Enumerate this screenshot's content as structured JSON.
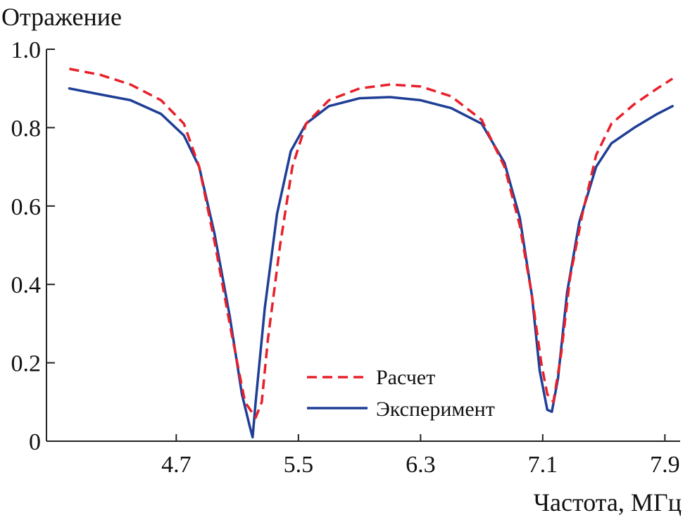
{
  "chart_data": {
    "type": "line",
    "ylabel": "Отражение",
    "xlabel": "Частота, МГц",
    "xlim": [
      3.85,
      8.0
    ],
    "ylim": [
      0,
      1.0
    ],
    "x_ticks": [
      4.7,
      5.5,
      6.3,
      7.1,
      7.9
    ],
    "x_tick_labels": [
      "4.7",
      "5.5",
      "6.3",
      "7.1",
      "7.9"
    ],
    "y_ticks": [
      0,
      0.2,
      0.4,
      0.6,
      0.8,
      1.0
    ],
    "y_tick_labels": [
      "0",
      "0.2",
      "0.4",
      "0.6",
      "0.8",
      "1.0"
    ],
    "grid": false,
    "legend_position": "bottom-center",
    "series": [
      {
        "name": "Расчет",
        "color": "#e8202a",
        "style": "dashed",
        "x": [
          4.0,
          4.2,
          4.4,
          4.6,
          4.75,
          4.85,
          4.95,
          5.05,
          5.15,
          5.22,
          5.26,
          5.3,
          5.38,
          5.46,
          5.55,
          5.7,
          5.9,
          6.1,
          6.3,
          6.5,
          6.7,
          6.85,
          6.95,
          7.03,
          7.09,
          7.13,
          7.17,
          7.22,
          7.28,
          7.36,
          7.45,
          7.55,
          7.7,
          7.85,
          7.95
        ],
        "y": [
          0.95,
          0.935,
          0.91,
          0.87,
          0.81,
          0.7,
          0.51,
          0.3,
          0.1,
          0.06,
          0.1,
          0.26,
          0.5,
          0.7,
          0.81,
          0.87,
          0.9,
          0.91,
          0.905,
          0.88,
          0.82,
          0.7,
          0.55,
          0.37,
          0.2,
          0.12,
          0.1,
          0.22,
          0.42,
          0.58,
          0.73,
          0.81,
          0.86,
          0.9,
          0.925
        ]
      },
      {
        "name": "Эксперимент",
        "color": "#1f3e96",
        "style": "solid",
        "x": [
          4.0,
          4.2,
          4.4,
          4.6,
          4.75,
          4.85,
          4.95,
          5.05,
          5.13,
          5.18,
          5.2,
          5.22,
          5.28,
          5.36,
          5.45,
          5.55,
          5.7,
          5.9,
          6.1,
          6.3,
          6.5,
          6.7,
          6.85,
          6.95,
          7.03,
          7.08,
          7.13,
          7.16,
          7.2,
          7.26,
          7.34,
          7.45,
          7.55,
          7.7,
          7.85,
          7.95
        ],
        "y": [
          0.9,
          0.885,
          0.87,
          0.835,
          0.78,
          0.7,
          0.53,
          0.32,
          0.12,
          0.04,
          0.01,
          0.1,
          0.34,
          0.58,
          0.74,
          0.81,
          0.855,
          0.875,
          0.878,
          0.87,
          0.85,
          0.81,
          0.71,
          0.57,
          0.37,
          0.18,
          0.08,
          0.075,
          0.16,
          0.38,
          0.56,
          0.7,
          0.76,
          0.8,
          0.835,
          0.855
        ]
      }
    ]
  }
}
